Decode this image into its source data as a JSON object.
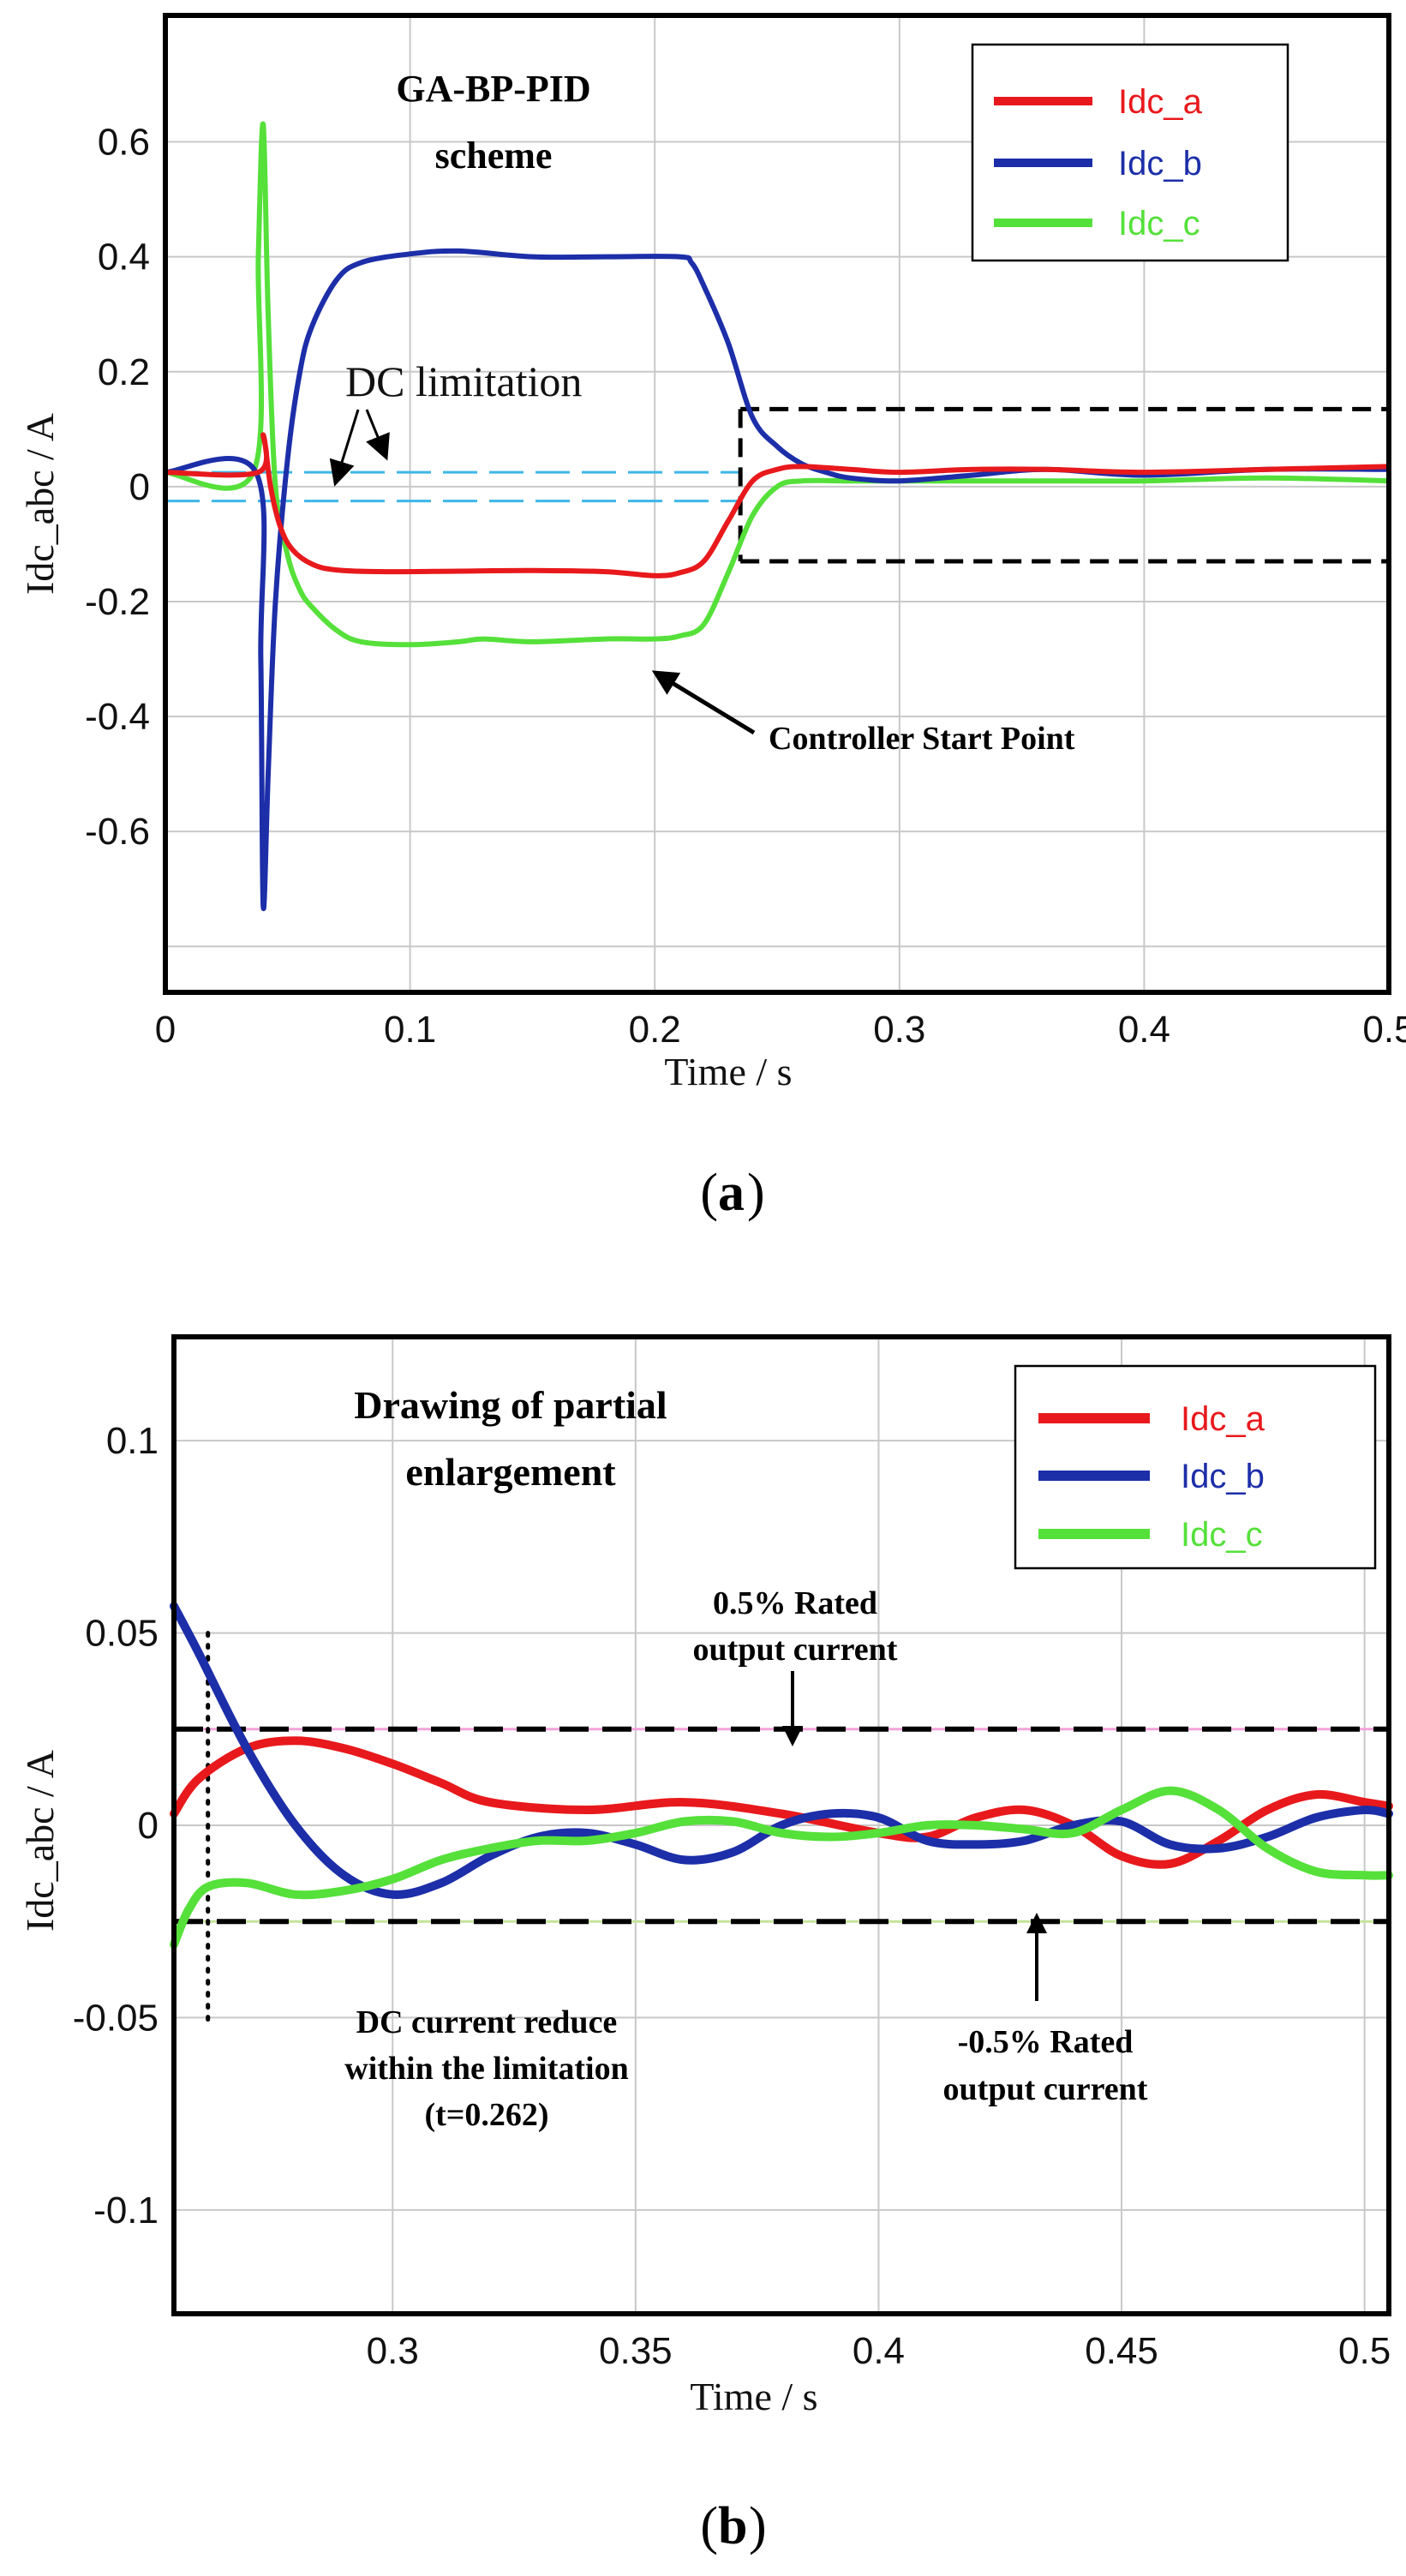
{
  "colors": {
    "Idc_a": "#e8191c",
    "Idc_b": "#1c2ea8",
    "Idc_c": "#55e03a",
    "limit_a": "#3fb6e8",
    "limit_b": "#f2a3d8"
  },
  "chart_data": [
    {
      "type": "line",
      "panel": "a",
      "caption_pre": "(",
      "caption_letter": "a",
      "caption_post": ")",
      "title_lines": [
        "GA-BP-PID",
        "scheme"
      ],
      "xlabel": "Time / s",
      "ylabel": "Idc_abc / A",
      "xlim": [
        0,
        0.5
      ],
      "ylim": [
        -0.88,
        0.82
      ],
      "xticks": [
        0,
        0.1,
        0.2,
        0.3,
        0.4,
        0.5
      ],
      "xtick_labels": [
        "0",
        "0.1",
        "0.2",
        "0.3",
        "0.4",
        "0.5"
      ],
      "yticks": [
        0.6,
        0.4,
        0.2,
        0,
        -0.2,
        -0.4,
        -0.6
      ],
      "ytick_labels": [
        "0.6",
        "0.4",
        "0.2",
        "0",
        "-0.2",
        "-0.4",
        "-0.6"
      ],
      "extra_grid_y": [
        -0.8
      ],
      "legend_position": "top-right",
      "series": [
        {
          "name": "Idc_a",
          "x": [
            0,
            0.038,
            0.04,
            0.043,
            0.047,
            0.052,
            0.06,
            0.07,
            0.09,
            0.12,
            0.15,
            0.18,
            0.2,
            0.21,
            0.22,
            0.23,
            0.24,
            0.25,
            0.26,
            0.28,
            0.3,
            0.33,
            0.36,
            0.4,
            0.45,
            0.5
          ],
          "y": [
            0.025,
            0.025,
            0.09,
            0.0,
            -0.07,
            -0.11,
            -0.135,
            -0.145,
            -0.148,
            -0.147,
            -0.146,
            -0.148,
            -0.155,
            -0.15,
            -0.13,
            -0.06,
            0.01,
            0.03,
            0.035,
            0.03,
            0.025,
            0.03,
            0.03,
            0.025,
            0.03,
            0.035
          ]
        },
        {
          "name": "Idc_b",
          "x": [
            0,
            0.037,
            0.039,
            0.04,
            0.042,
            0.045,
            0.05,
            0.055,
            0.06,
            0.07,
            0.08,
            0.1,
            0.12,
            0.15,
            0.18,
            0.21,
            0.215,
            0.22,
            0.23,
            0.24,
            0.25,
            0.26,
            0.27,
            0.28,
            0.3,
            0.33,
            0.36,
            0.4,
            0.45,
            0.5
          ],
          "y": [
            0.025,
            0.025,
            -0.3,
            -0.73,
            -0.5,
            -0.2,
            0.05,
            0.2,
            0.28,
            0.36,
            0.39,
            0.405,
            0.41,
            0.4,
            0.4,
            0.4,
            0.39,
            0.35,
            0.25,
            0.12,
            0.07,
            0.04,
            0.025,
            0.015,
            0.01,
            0.02,
            0.03,
            0.02,
            0.03,
            0.03
          ]
        },
        {
          "name": "Idc_c",
          "x": [
            0,
            0.036,
            0.038,
            0.04,
            0.042,
            0.045,
            0.05,
            0.055,
            0.06,
            0.07,
            0.08,
            0.1,
            0.12,
            0.13,
            0.15,
            0.18,
            0.2,
            0.21,
            0.22,
            0.23,
            0.24,
            0.25,
            0.26,
            0.28,
            0.3,
            0.33,
            0.36,
            0.4,
            0.45,
            0.5
          ],
          "y": [
            0.025,
            0.025,
            0.4,
            0.63,
            0.3,
            0.0,
            -0.12,
            -0.18,
            -0.21,
            -0.25,
            -0.27,
            -0.275,
            -0.27,
            -0.265,
            -0.27,
            -0.265,
            -0.265,
            -0.26,
            -0.24,
            -0.15,
            -0.05,
            0.0,
            0.01,
            0.01,
            0.01,
            0.01,
            0.01,
            0.01,
            0.015,
            0.01
          ]
        }
      ],
      "annotations": {
        "dc_limitation": "DC limitation",
        "controller_start": "Controller Start Point"
      },
      "limit_lines_y": [
        0.025,
        -0.025
      ],
      "zoom_box": {
        "x0": 0.235,
        "x1": 0.5,
        "y0": -0.13,
        "y1": 0.135
      }
    },
    {
      "type": "line",
      "panel": "b",
      "caption_pre": "(",
      "caption_letter": "b",
      "caption_post": ")",
      "title_lines": [
        "Drawing of partial",
        "enlargement"
      ],
      "xlabel": "Time / s",
      "ylabel": "Idc_abc / A",
      "xlim": [
        0.255,
        0.505
      ],
      "ylim": [
        -0.127,
        0.127
      ],
      "xticks": [
        0.3,
        0.35,
        0.4,
        0.45,
        0.5
      ],
      "xtick_labels": [
        "0.3",
        "0.35",
        "0.4",
        "0.45",
        "0.5"
      ],
      "yticks": [
        0.1,
        0.05,
        0,
        -0.05,
        -0.1
      ],
      "ytick_labels": [
        "0.1",
        "0.05",
        "0",
        "-0.05",
        "-0.1"
      ],
      "legend_position": "top-right",
      "series": [
        {
          "name": "Idc_a",
          "x": [
            0.255,
            0.26,
            0.27,
            0.28,
            0.29,
            0.3,
            0.31,
            0.32,
            0.34,
            0.36,
            0.38,
            0.4,
            0.41,
            0.42,
            0.43,
            0.44,
            0.45,
            0.46,
            0.47,
            0.48,
            0.49,
            0.5,
            0.505
          ],
          "y": [
            0.003,
            0.012,
            0.02,
            0.022,
            0.02,
            0.016,
            0.011,
            0.006,
            0.004,
            0.006,
            0.003,
            -0.002,
            -0.003,
            0.002,
            0.004,
            0.0,
            -0.008,
            -0.01,
            -0.004,
            0.004,
            0.008,
            0.006,
            0.005
          ]
        },
        {
          "name": "Idc_b",
          "x": [
            0.255,
            0.26,
            0.27,
            0.28,
            0.29,
            0.3,
            0.31,
            0.32,
            0.33,
            0.34,
            0.35,
            0.36,
            0.37,
            0.38,
            0.39,
            0.4,
            0.41,
            0.42,
            0.43,
            0.44,
            0.45,
            0.46,
            0.47,
            0.48,
            0.49,
            0.5,
            0.505
          ],
          "y": [
            0.057,
            0.045,
            0.02,
            0.0,
            -0.013,
            -0.018,
            -0.015,
            -0.008,
            -0.003,
            -0.002,
            -0.005,
            -0.009,
            -0.007,
            0.0,
            0.003,
            0.002,
            -0.004,
            -0.005,
            -0.004,
            0.0,
            0.001,
            -0.005,
            -0.006,
            -0.003,
            0.002,
            0.004,
            0.003
          ]
        },
        {
          "name": "Idc_c",
          "x": [
            0.255,
            0.258,
            0.262,
            0.27,
            0.28,
            0.29,
            0.3,
            0.31,
            0.32,
            0.33,
            0.34,
            0.35,
            0.36,
            0.37,
            0.38,
            0.39,
            0.4,
            0.41,
            0.42,
            0.43,
            0.44,
            0.45,
            0.46,
            0.47,
            0.48,
            0.49,
            0.5,
            0.505
          ],
          "y": [
            -0.031,
            -0.022,
            -0.016,
            -0.015,
            -0.018,
            -0.017,
            -0.014,
            -0.009,
            -0.006,
            -0.004,
            -0.004,
            -0.002,
            0.001,
            0.001,
            -0.002,
            -0.003,
            -0.002,
            0.0,
            0.0,
            -0.001,
            -0.002,
            0.004,
            0.009,
            0.004,
            -0.006,
            -0.012,
            -0.013,
            -0.013
          ]
        }
      ],
      "annotations": {
        "upper_limit_lines": [
          "0.5% Rated",
          "output current"
        ],
        "lower_limit_lines": [
          "-0.5% Rated",
          "output current"
        ],
        "reduce_lines": [
          "DC current reduce",
          "within the limitation",
          "(t=0.262)"
        ]
      },
      "limit_lines_y": [
        0.025,
        -0.025
      ],
      "dotted_x": 0.262
    }
  ]
}
